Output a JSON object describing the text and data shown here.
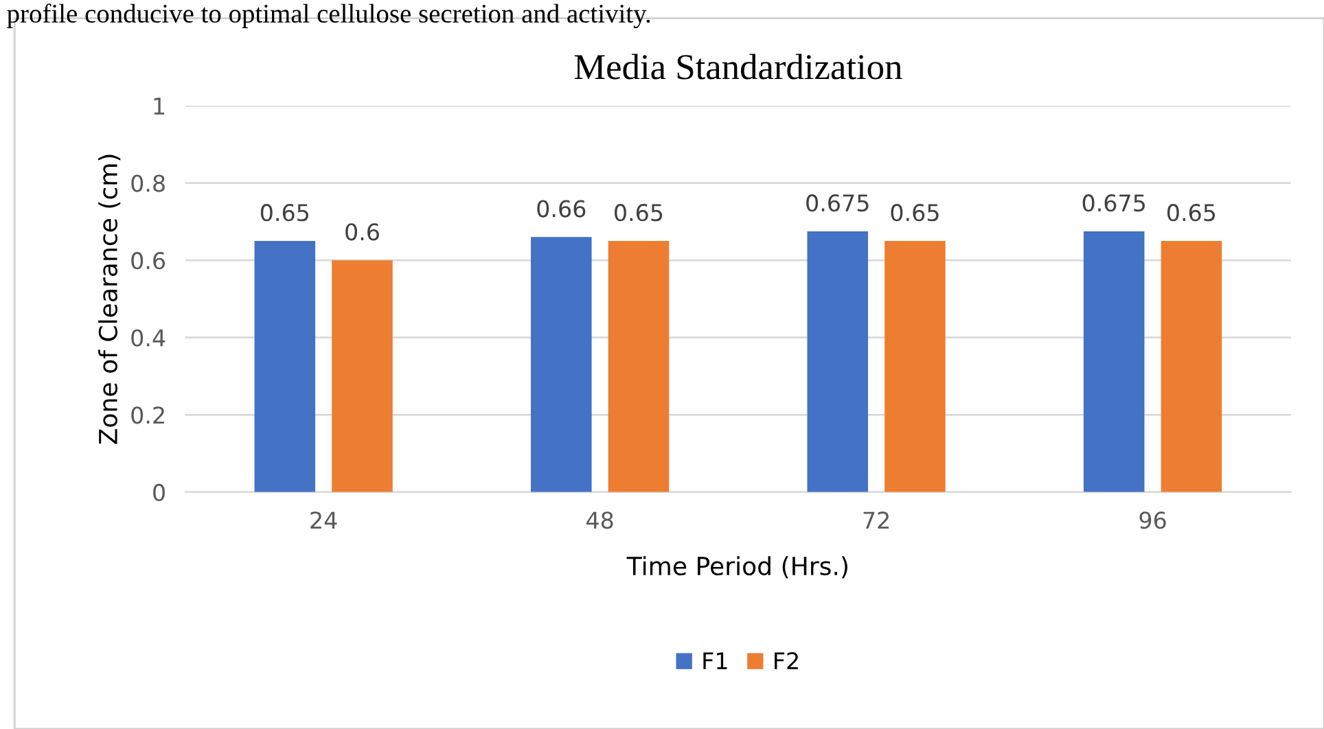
{
  "chart_data": {
    "type": "bar",
    "title": "Media Standardization",
    "xlabel": "Time Period (Hrs.)",
    "ylabel": "Zone of Clearance (cm)",
    "categories": [
      "24",
      "48",
      "72",
      "96"
    ],
    "series": [
      {
        "name": "F1",
        "color": "#4472c4",
        "values": [
          0.65,
          0.66,
          0.675,
          0.675
        ]
      },
      {
        "name": "F2",
        "color": "#ed7d31",
        "values": [
          0.6,
          0.65,
          0.65,
          0.65
        ]
      }
    ],
    "ylim": [
      0,
      1
    ],
    "yticks": [
      0,
      0.2,
      0.4,
      0.6,
      0.8,
      1
    ],
    "grid": "y",
    "legend": "bottom",
    "data_labels": true,
    "annotations": [
      "profile conducive to optimal cellulose secretion and activity."
    ]
  }
}
